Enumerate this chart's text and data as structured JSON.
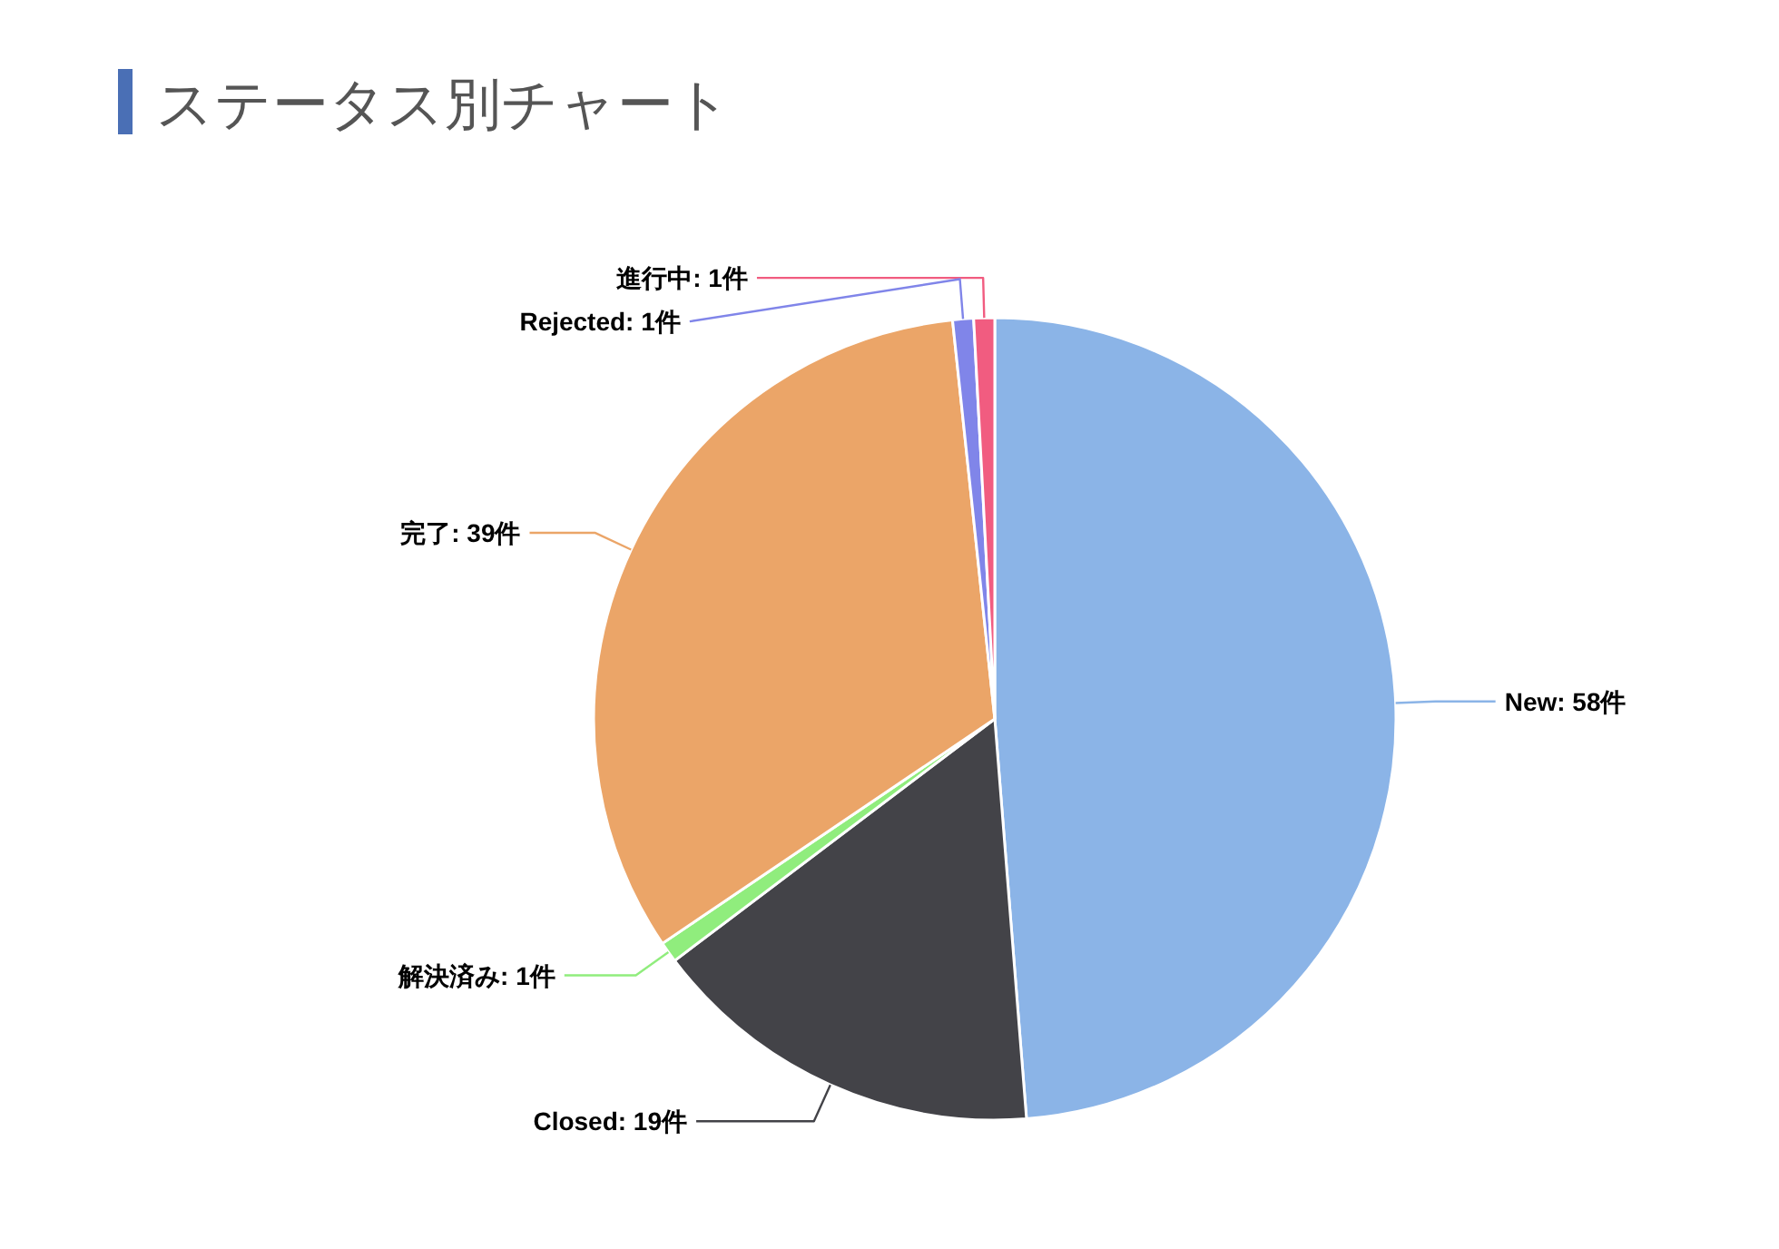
{
  "chart_data": {
    "type": "pie",
    "title": "ステータス別チャート",
    "categories": [
      "New",
      "Closed",
      "解決済み",
      "完了",
      "Rejected",
      "進行中"
    ],
    "values": [
      58,
      19,
      1,
      39,
      1,
      1
    ],
    "value_labels": [
      "58件",
      "19件",
      "1件",
      "39件",
      "1件",
      "1件"
    ],
    "colors": [
      "#8bb4e7",
      "#434348",
      "#90ed7d",
      "#eba568",
      "#8085e9",
      "#f15c80"
    ]
  }
}
